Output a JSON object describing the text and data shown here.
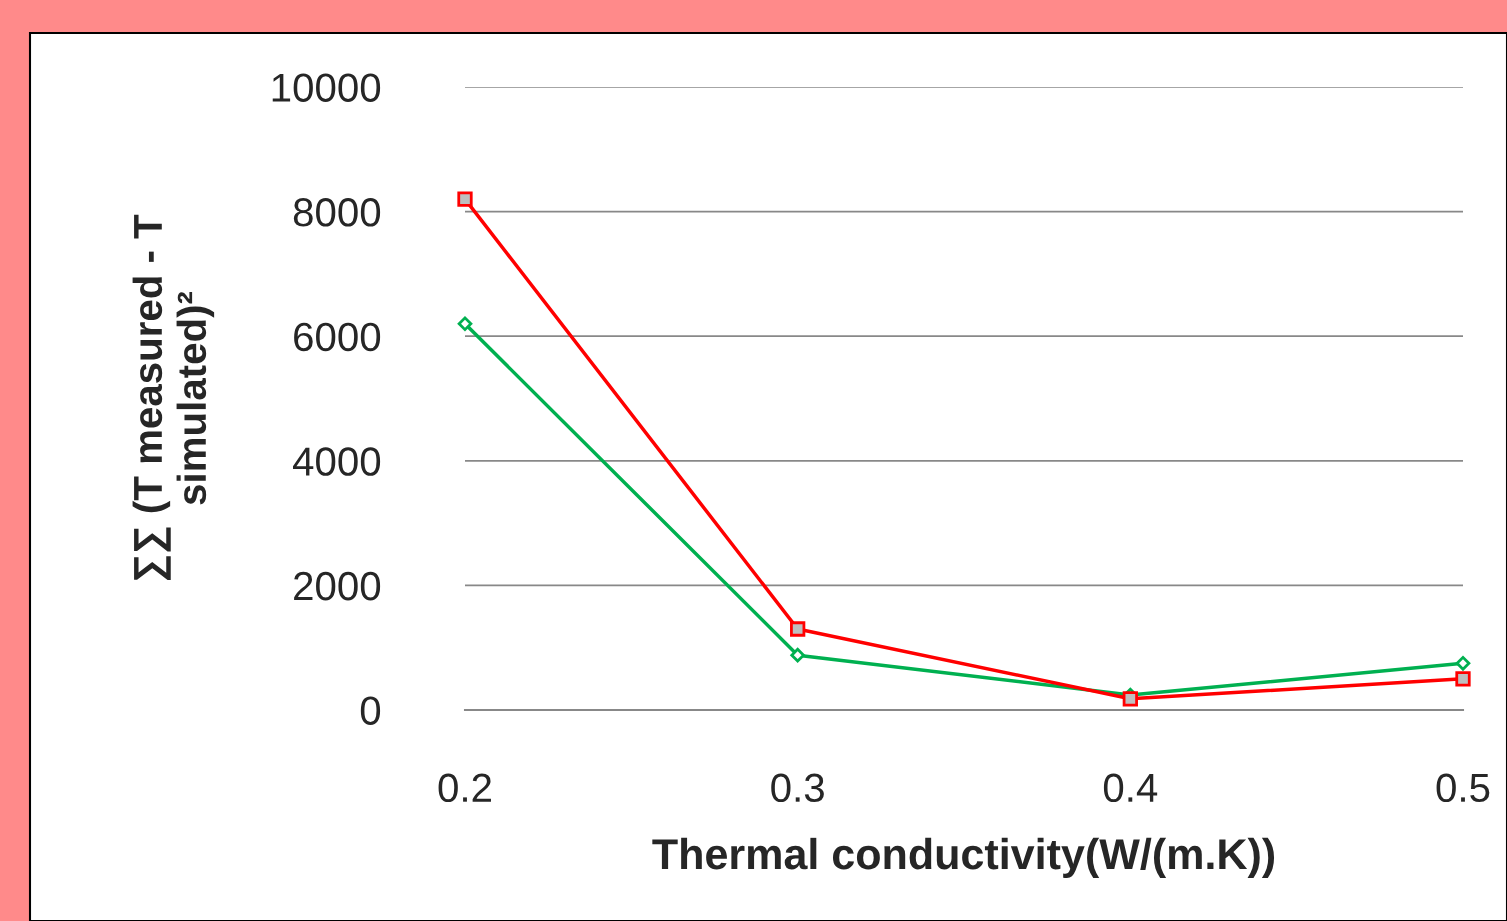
{
  "chart_data": {
    "type": "line",
    "xlabel": "Thermal conductivity(W/(m.K))",
    "ylabel": "∑∑ (T measured - T\nsimulated)²",
    "x": [
      0.2,
      0.3,
      0.4,
      0.5
    ],
    "series": [
      {
        "color": "#ff0000",
        "values": [
          8200,
          1300,
          180,
          500
        ],
        "marker": "square"
      },
      {
        "color": "#00b050",
        "values": [
          6200,
          880,
          240,
          750
        ],
        "marker": "diamond"
      }
    ],
    "xlim": [
      0.2,
      0.5
    ],
    "xticks": [
      0.2,
      0.3,
      0.4,
      0.5
    ],
    "ylim": [
      0,
      10000
    ],
    "yticks": [
      0,
      2000,
      4000,
      6000,
      8000,
      10000
    ],
    "grid": "y",
    "line_style": "solid"
  }
}
